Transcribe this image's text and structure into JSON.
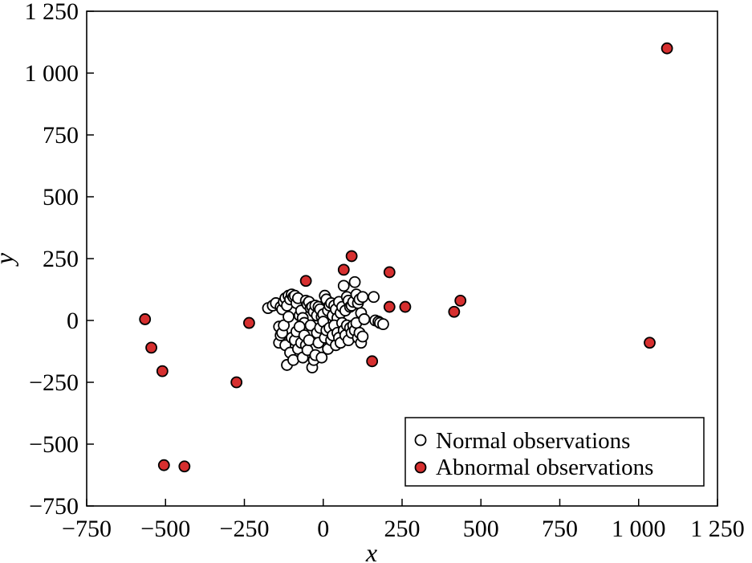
{
  "chart_data": {
    "type": "scatter",
    "title": "",
    "xlabel": "x",
    "ylabel": "y",
    "xlim": [
      -750,
      1250
    ],
    "ylim": [
      -750,
      1250
    ],
    "xticks": [
      -750,
      -500,
      -250,
      0,
      250,
      500,
      750,
      1000,
      1250
    ],
    "yticks": [
      -750,
      -500,
      -250,
      0,
      250,
      500,
      750,
      1000,
      1250
    ],
    "xtick_labels": [
      "−750",
      "−500",
      "−250",
      "0",
      "250",
      "500",
      "750",
      "1 000",
      "1 250"
    ],
    "ytick_labels": [
      "−750",
      "−500",
      "−250",
      "0",
      "250",
      "500",
      "750",
      "1 000",
      "1 250"
    ],
    "grid": false,
    "legend_position": "bottom-right",
    "series": [
      {
        "name": "Normal observations",
        "color": "#ffffff",
        "points": [
          [
            -175,
            50
          ],
          [
            -160,
            60
          ],
          [
            -150,
            70
          ],
          [
            -140,
            -25
          ],
          [
            -135,
            55
          ],
          [
            -130,
            45
          ],
          [
            -125,
            75
          ],
          [
            -120,
            90
          ],
          [
            -115,
            60
          ],
          [
            -110,
            100
          ],
          [
            -105,
            85
          ],
          [
            -100,
            105
          ],
          [
            -95,
            95
          ],
          [
            -90,
            100
          ],
          [
            -85,
            70
          ],
          [
            -80,
            90
          ],
          [
            -75,
            20
          ],
          [
            -70,
            40
          ],
          [
            -65,
            10
          ],
          [
            -60,
            -10
          ],
          [
            -55,
            80
          ],
          [
            -50,
            65
          ],
          [
            -45,
            75
          ],
          [
            -40,
            50
          ],
          [
            -35,
            55
          ],
          [
            -30,
            35
          ],
          [
            -25,
            60
          ],
          [
            -20,
            20
          ],
          [
            -15,
            55
          ],
          [
            -10,
            45
          ],
          [
            -5,
            15
          ],
          [
            0,
            25
          ],
          [
            5,
            100
          ],
          [
            10,
            85
          ],
          [
            15,
            40
          ],
          [
            20,
            60
          ],
          [
            25,
            70
          ],
          [
            30,
            20
          ],
          [
            35,
            60
          ],
          [
            40,
            45
          ],
          [
            45,
            10
          ],
          [
            50,
            75
          ],
          [
            55,
            30
          ],
          [
            60,
            55
          ],
          [
            65,
            140
          ],
          [
            70,
            40
          ],
          [
            75,
            95
          ],
          [
            80,
            80
          ],
          [
            85,
            55
          ],
          [
            90,
            60
          ],
          [
            95,
            75
          ],
          [
            100,
            155
          ],
          [
            105,
            105
          ],
          [
            110,
            70
          ],
          [
            115,
            85
          ],
          [
            120,
            30
          ],
          [
            125,
            95
          ],
          [
            160,
            95
          ],
          [
            165,
            0
          ],
          [
            175,
            -5
          ],
          [
            -140,
            -90
          ],
          [
            -135,
            -60
          ],
          [
            -130,
            -50
          ],
          [
            -125,
            -20
          ],
          [
            -120,
            -100
          ],
          [
            -115,
            -180
          ],
          [
            -110,
            15
          ],
          [
            -105,
            -130
          ],
          [
            -100,
            -70
          ],
          [
            -95,
            -160
          ],
          [
            -90,
            -80
          ],
          [
            -85,
            -45
          ],
          [
            -80,
            -115
          ],
          [
            -75,
            -25
          ],
          [
            -70,
            -90
          ],
          [
            -65,
            -150
          ],
          [
            -60,
            -60
          ],
          [
            -55,
            -100
          ],
          [
            -50,
            -120
          ],
          [
            -45,
            -80
          ],
          [
            -40,
            -20
          ],
          [
            -35,
            -190
          ],
          [
            -30,
            -160
          ],
          [
            -25,
            -140
          ],
          [
            -20,
            -50
          ],
          [
            -15,
            -90
          ],
          [
            -10,
            -30
          ],
          [
            -5,
            -150
          ],
          [
            0,
            -5
          ],
          [
            5,
            -70
          ],
          [
            10,
            -40
          ],
          [
            15,
            -115
          ],
          [
            20,
            -30
          ],
          [
            25,
            -80
          ],
          [
            30,
            -60
          ],
          [
            35,
            -20
          ],
          [
            40,
            -100
          ],
          [
            45,
            -50
          ],
          [
            50,
            -70
          ],
          [
            55,
            -90
          ],
          [
            60,
            -10
          ],
          [
            65,
            -40
          ],
          [
            70,
            -60
          ],
          [
            75,
            -20
          ],
          [
            80,
            -80
          ],
          [
            85,
            -30
          ],
          [
            90,
            -50
          ],
          [
            95,
            -20
          ],
          [
            100,
            -40
          ],
          [
            105,
            -10
          ],
          [
            110,
            -70
          ],
          [
            115,
            -50
          ],
          [
            120,
            -90
          ],
          [
            125,
            -65
          ],
          [
            130,
            5
          ],
          [
            180,
            -10
          ],
          [
            190,
            -15
          ]
        ]
      },
      {
        "name": "Abnormal observations",
        "color": "#d62f2f",
        "points": [
          [
            1090,
            1100
          ],
          [
            1035,
            -90
          ],
          [
            435,
            80
          ],
          [
            415,
            35
          ],
          [
            260,
            55
          ],
          [
            210,
            55
          ],
          [
            210,
            195
          ],
          [
            90,
            260
          ],
          [
            65,
            205
          ],
          [
            -55,
            160
          ],
          [
            155,
            -165
          ],
          [
            -235,
            -10
          ],
          [
            -275,
            -250
          ],
          [
            -565,
            5
          ],
          [
            -545,
            -110
          ],
          [
            -510,
            -205
          ],
          [
            -505,
            -585
          ],
          [
            -440,
            -590
          ]
        ]
      }
    ]
  }
}
